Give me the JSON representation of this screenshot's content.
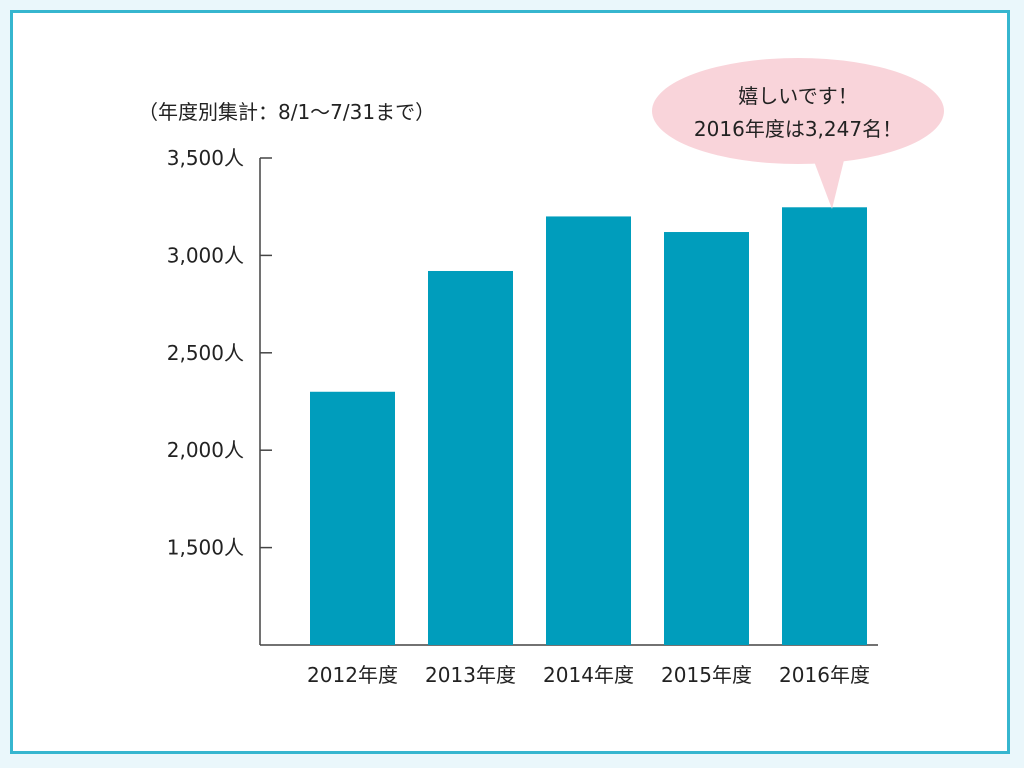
{
  "colors": {
    "bar": "#009dbc",
    "frame_border": "#36b6cf",
    "background": "#eaf7fb",
    "bubble_fill": "#f9d4da"
  },
  "chart_data": {
    "type": "bar",
    "subtitle": "（年度別集計：8/1〜7/31まで）",
    "categories": [
      "2012年度",
      "2013年度",
      "2014年度",
      "2015年度",
      "2016年度"
    ],
    "values": [
      2300,
      2920,
      3200,
      3120,
      3247
    ],
    "ylim": [
      1000,
      3500
    ],
    "yticks": [
      1500,
      2000,
      2500,
      3000,
      3500
    ],
    "ytick_labels": [
      "1,500人",
      "2,000人",
      "2,500人",
      "3,000人",
      "3,500人"
    ],
    "grid": false,
    "annotation": {
      "line1": "嬉しいです！",
      "line2": "2016年度は3,247名！"
    }
  }
}
